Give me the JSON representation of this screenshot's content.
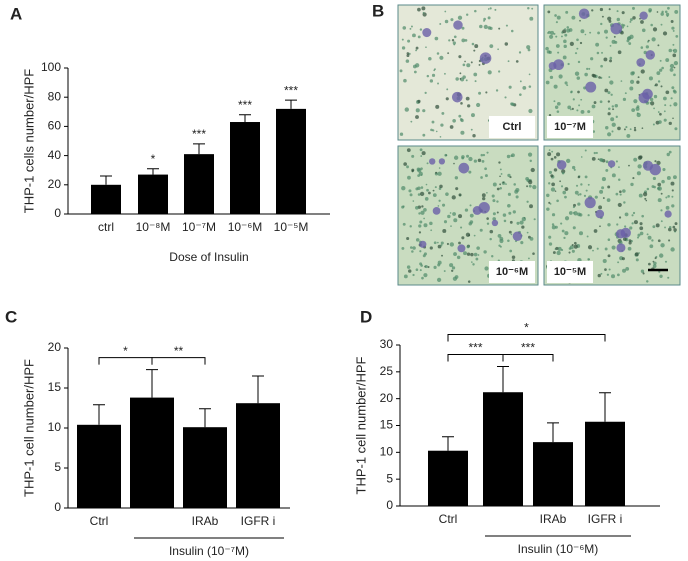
{
  "chart_data": [
    {
      "type": "bar",
      "panel": "A",
      "y_label": "THP-1 cells number/HPF",
      "x_label": "Dose of Insulin",
      "categories": [
        "ctrl",
        "10⁻⁸M",
        "10⁻⁷M",
        "10⁻⁶M",
        "10⁻⁵M"
      ],
      "values": [
        20,
        27,
        41,
        63,
        72
      ],
      "errors": [
        6,
        4,
        7,
        5,
        6
      ],
      "annotations": [
        null,
        "*",
        "***",
        "***",
        "***"
      ],
      "color": "#000000",
      "ylim": [
        0,
        100
      ],
      "yticks": [
        0,
        20,
        40,
        60,
        80,
        100
      ]
    },
    {
      "type": "bar",
      "panel": "C",
      "y_label": "THP-1 cell number/HPF",
      "categories": [
        "Ctrl",
        null,
        "IRAb",
        "IGFR  i"
      ],
      "values": [
        10.4,
        13.8,
        10.1,
        13.1
      ],
      "errors": [
        2.5,
        3.5,
        2.3,
        3.4
      ],
      "brackets": [
        {
          "from": 0,
          "to": 1,
          "label": "*"
        },
        {
          "from": 1,
          "to": 2,
          "label": "**"
        }
      ],
      "group": {
        "from": 1,
        "to": 3,
        "label": "Insulin (10⁻⁷M)"
      },
      "color": "#000000",
      "ylim": [
        0,
        20
      ],
      "yticks": [
        0,
        5,
        10,
        15,
        20
      ]
    },
    {
      "type": "bar",
      "panel": "D",
      "y_label": "THP-1 cell number/HPF",
      "categories": [
        "Ctrl",
        null,
        "IRAb",
        "IGFR i"
      ],
      "values": [
        10.3,
        21.2,
        11.9,
        15.7
      ],
      "errors": [
        2.6,
        4.8,
        3.6,
        5.4
      ],
      "brackets": [
        {
          "from": 0,
          "to": 1,
          "label": "***"
        },
        {
          "from": 1,
          "to": 2,
          "label": "***"
        },
        {
          "from": 0,
          "to": 3,
          "label": "*"
        }
      ],
      "group": {
        "from": 1,
        "to": 3,
        "label": "Insulin (10⁻⁶M)"
      },
      "color": "#000000",
      "ylim": [
        0,
        30
      ],
      "yticks": [
        0,
        5,
        10,
        15,
        20,
        25,
        30
      ]
    }
  ],
  "images": {
    "panel": "B",
    "labels": [
      "Ctrl",
      "10⁻⁷M",
      "10⁻⁶M",
      "10⁻⁵M"
    ]
  }
}
